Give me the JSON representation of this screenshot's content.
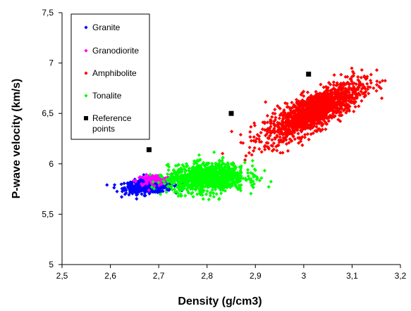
{
  "chart_data": {
    "type": "scatter",
    "title": "",
    "xlabel": "Density (g/cm3)",
    "ylabel": "P-wave velocity (km/s)",
    "xlim": [
      2.5,
      3.2
    ],
    "ylim": [
      5,
      7.5
    ],
    "x_ticks": [
      "2,5",
      "2,6",
      "2,7",
      "2,8",
      "2,9",
      "3",
      "3,1",
      "3,2"
    ],
    "y_ticks": [
      "5",
      "5,5",
      "6",
      "6,5",
      "7",
      "7,5"
    ],
    "grid": false,
    "legend_position": "top-left",
    "series": [
      {
        "name": "Granite",
        "color": "#0000ff",
        "marker": "diamond",
        "cloud": {
          "center": [
            2.68,
            5.78
          ],
          "spread": [
            0.025,
            0.035
          ],
          "tilt": 0.35,
          "count": 500
        }
      },
      {
        "name": "Granodiorite",
        "color": "#ff00ff",
        "marker": "diamond",
        "cloud": {
          "center": [
            2.69,
            5.84
          ],
          "spread": [
            0.018,
            0.025
          ],
          "tilt": 0.2,
          "count": 120
        }
      },
      {
        "name": "Amphibolite",
        "color": "#ff0000",
        "marker": "diamond",
        "cloud": {
          "center": [
            3.02,
            6.52
          ],
          "spread": [
            0.05,
            0.09
          ],
          "tilt": 2.3,
          "count": 1500
        }
      },
      {
        "name": "Tonalite",
        "color": "#00ff00",
        "marker": "diamond",
        "cloud": {
          "center": [
            2.8,
            5.86
          ],
          "spread": [
            0.04,
            0.07
          ],
          "tilt": 0.25,
          "count": 1100
        }
      },
      {
        "name": "Reference points",
        "color": "#000000",
        "marker": "square",
        "points": [
          [
            2.68,
            6.14
          ],
          [
            2.85,
            6.5
          ],
          [
            3.01,
            6.89
          ]
        ]
      }
    ]
  }
}
